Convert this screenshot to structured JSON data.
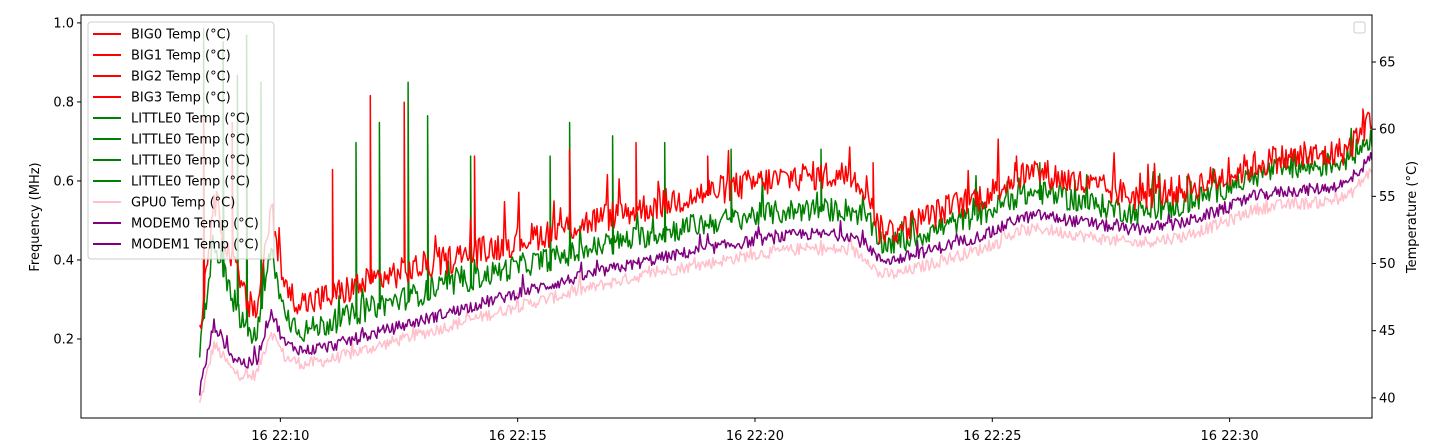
{
  "chart_data": {
    "type": "line",
    "title": "",
    "x_ticks": [
      "16 22:10",
      "16 22:15",
      "16 22:20",
      "16 22:25",
      "16 22:30"
    ],
    "x_range_minutes": [
      5.8,
      33.0
    ],
    "left_axis": {
      "label": "Frequency (MHz)",
      "ylim": [
        0.0,
        1.02
      ],
      "ticks": [
        "0.2",
        "0.4",
        "0.6",
        "0.8",
        "1.0"
      ],
      "tick_values": [
        0.2,
        0.4,
        0.6,
        0.8,
        1.0
      ]
    },
    "right_axis": {
      "label": "Temperature (°C)",
      "ylim": [
        38.5,
        68.5
      ],
      "ticks": [
        "40",
        "45",
        "50",
        "55",
        "60",
        "65"
      ],
      "tick_values": [
        40,
        45,
        50,
        55,
        60,
        65
      ]
    },
    "legend_left": {
      "placement": "top-left",
      "entries": [
        {
          "name": "BIG0 Temp (°C)",
          "color": "#ff0000"
        },
        {
          "name": "BIG1 Temp (°C)",
          "color": "#ff0000"
        },
        {
          "name": "BIG2 Temp (°C)",
          "color": "#ff0000"
        },
        {
          "name": "BIG3 Temp (°C)",
          "color": "#ff0000"
        },
        {
          "name": "LITTLE0 Temp (°C)",
          "color": "#008000"
        },
        {
          "name": "LITTLE0 Temp (°C)",
          "color": "#008000"
        },
        {
          "name": "LITTLE0 Temp (°C)",
          "color": "#008000"
        },
        {
          "name": "LITTLE0 Temp (°C)",
          "color": "#008000"
        },
        {
          "name": "GPU0 Temp (°C)",
          "color": "#ffc0cb"
        },
        {
          "name": "MODEM0 Temp (°C)",
          "color": "#800080"
        },
        {
          "name": "MODEM1 Temp (°C)",
          "color": "#800080"
        }
      ]
    },
    "legend_right": {
      "placement": "top-right",
      "entries": []
    },
    "series": [
      {
        "name": "BIG0 Temp (°C)",
        "color": "#ff0000",
        "axis": "right",
        "x": [
          8.3,
          8.6,
          9.0,
          9.3,
          9.5,
          9.8,
          10.1,
          10.5,
          11,
          12,
          13,
          14,
          15,
          16,
          17,
          18,
          19,
          20,
          21,
          22,
          22.4,
          22.6,
          23,
          24,
          25,
          25.5,
          26,
          27,
          28,
          29,
          30,
          30.5,
          31,
          32,
          32.5,
          33.0
        ],
        "y": [
          45.0,
          55.0,
          50.0,
          47.0,
          46.5,
          54.0,
          48.0,
          47.0,
          47.5,
          48.8,
          49.8,
          50.7,
          51.7,
          52.6,
          53.6,
          54.4,
          55.3,
          56.0,
          56.5,
          56.6,
          55.5,
          52.5,
          52.5,
          54.0,
          55.3,
          56.5,
          56.8,
          55.8,
          55.0,
          55.5,
          56.6,
          57.3,
          57.8,
          58.0,
          58.5,
          61.0
        ],
        "spikes": [
          {
            "x": 8.4,
            "y": 61.0
          },
          {
            "x": 9.0,
            "y": 60.5
          },
          {
            "x": 11.1,
            "y": 57.0
          },
          {
            "x": 11.9,
            "y": 62.5
          },
          {
            "x": 12.6,
            "y": 62.0
          },
          {
            "x": 14.1,
            "y": 58.0
          },
          {
            "x": 16.1,
            "y": 58.5
          },
          {
            "x": 17.5,
            "y": 59.0
          },
          {
            "x": 19.0,
            "y": 58.0
          },
          {
            "x": 22.5,
            "y": 57.5
          },
          {
            "x": 25.5,
            "y": 58.0
          },
          {
            "x": 28.5,
            "y": 56.5
          },
          {
            "x": 32.8,
            "y": 61.5
          }
        ]
      },
      {
        "name": "LITTLE0 Temp (°C)",
        "color": "#008000",
        "axis": "right",
        "x": [
          8.3,
          8.6,
          9.0,
          9.3,
          9.5,
          9.8,
          10.1,
          10.5,
          11,
          12,
          13,
          14,
          15,
          16,
          17,
          18,
          19,
          20,
          21,
          22,
          22.4,
          22.6,
          23,
          24,
          25,
          25.5,
          26,
          27,
          28,
          29,
          30,
          30.5,
          31,
          32,
          32.5,
          33.0
        ],
        "y": [
          43.5,
          52.0,
          47.0,
          45.0,
          44.5,
          51.0,
          46.0,
          45.0,
          45.5,
          46.8,
          47.8,
          48.8,
          49.8,
          50.6,
          51.5,
          52.3,
          53.0,
          53.6,
          54.0,
          54.0,
          53.3,
          51.5,
          51.5,
          52.8,
          54.0,
          55.0,
          55.3,
          54.5,
          53.8,
          54.3,
          55.8,
          56.5,
          57.0,
          57.3,
          57.8,
          59.5
        ],
        "spikes": [
          {
            "x": 8.4,
            "y": 67.5
          },
          {
            "x": 8.8,
            "y": 66.5
          },
          {
            "x": 9.1,
            "y": 64.0
          },
          {
            "x": 9.3,
            "y": 67.0
          },
          {
            "x": 9.6,
            "y": 63.5
          },
          {
            "x": 11.6,
            "y": 59.0
          },
          {
            "x": 12.1,
            "y": 60.5
          },
          {
            "x": 12.7,
            "y": 63.5
          },
          {
            "x": 13.1,
            "y": 61.0
          },
          {
            "x": 14.0,
            "y": 58.0
          },
          {
            "x": 15.7,
            "y": 58.0
          },
          {
            "x": 16.1,
            "y": 60.5
          },
          {
            "x": 17.0,
            "y": 59.5
          },
          {
            "x": 18.1,
            "y": 59.0
          },
          {
            "x": 19.5,
            "y": 58.5
          },
          {
            "x": 21.4,
            "y": 58.5
          },
          {
            "x": 26.0,
            "y": 57.5
          },
          {
            "x": 29.1,
            "y": 56.5
          }
        ]
      },
      {
        "name": "GPU0 Temp (°C)",
        "color": "#ffc0cb",
        "axis": "right",
        "x": [
          8.3,
          8.6,
          9.0,
          9.3,
          9.5,
          9.8,
          10.1,
          10.5,
          11,
          12,
          13,
          14,
          15,
          16,
          17,
          18,
          19,
          20,
          21,
          22,
          22.4,
          22.6,
          23,
          24,
          25,
          25.5,
          26,
          27,
          28,
          29,
          30,
          30.5,
          31,
          32,
          32.5,
          33.0
        ],
        "y": [
          39.5,
          44.0,
          42.0,
          41.5,
          41.8,
          45.0,
          43.0,
          42.5,
          42.8,
          43.8,
          44.8,
          45.8,
          46.8,
          47.7,
          48.6,
          49.4,
          50.0,
          50.7,
          51.1,
          51.0,
          50.3,
          49.2,
          49.2,
          50.3,
          51.3,
          52.3,
          52.6,
          52.0,
          51.5,
          52.0,
          53.2,
          54.0,
          54.3,
          54.6,
          55.0,
          57.0
        ],
        "spikes": []
      },
      {
        "name": "MODEM0 Temp (°C)",
        "color": "#800080",
        "axis": "right",
        "x": [
          8.3,
          8.6,
          9.0,
          9.3,
          9.5,
          9.8,
          10.1,
          10.5,
          11,
          12,
          13,
          14,
          15,
          16,
          17,
          18,
          19,
          20,
          21,
          22,
          22.4,
          22.6,
          23,
          24,
          25,
          25.5,
          26,
          27,
          28,
          29,
          30,
          30.5,
          31,
          32,
          32.5,
          33.0
        ],
        "y": [
          40.5,
          45.5,
          43.0,
          42.5,
          42.8,
          46.5,
          44.0,
          43.5,
          43.8,
          44.8,
          45.8,
          46.8,
          47.8,
          48.7,
          49.6,
          50.4,
          51.1,
          51.7,
          52.2,
          52.1,
          51.3,
          50.3,
          50.3,
          51.3,
          52.3,
          53.3,
          53.6,
          53.0,
          52.5,
          53.0,
          54.2,
          55.0,
          55.3,
          55.6,
          56.0,
          58.0
        ],
        "spikes": []
      }
    ]
  }
}
